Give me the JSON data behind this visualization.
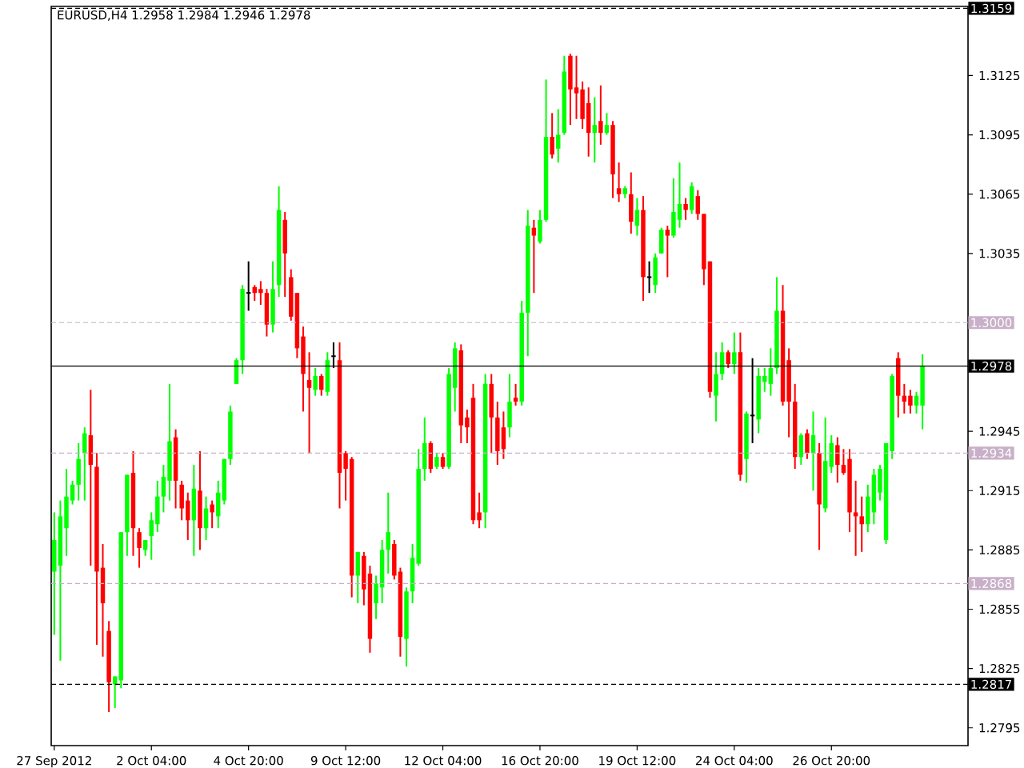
{
  "chart_data": {
    "type": "candlestick",
    "title": "EURUSD,H4 1.2958 1.2984 1.2946 1.2978",
    "categories": [
      "27 Sep 2012",
      null,
      null,
      null,
      null,
      null,
      null,
      null,
      null,
      null,
      null,
      null,
      null,
      null,
      null,
      null,
      "2 Oct 04:00",
      null,
      null,
      null,
      null,
      null,
      null,
      null,
      null,
      null,
      null,
      null,
      null,
      null,
      null,
      null,
      "4 Oct 20:00",
      null,
      null,
      null,
      null,
      null,
      null,
      null,
      null,
      null,
      null,
      null,
      null,
      null,
      null,
      null,
      "9 Oct 12:00",
      null,
      null,
      null,
      null,
      null,
      null,
      null,
      null,
      null,
      null,
      null,
      null,
      null,
      null,
      null,
      "12 Oct 04:00",
      null,
      null,
      null,
      null,
      null,
      null,
      null,
      null,
      null,
      null,
      null,
      null,
      null,
      null,
      null,
      "16 Oct 20:00",
      null,
      null,
      null,
      null,
      null,
      null,
      null,
      null,
      null,
      null,
      null,
      null,
      null,
      null,
      null,
      "19 Oct 12:00",
      null,
      null,
      null,
      null,
      null,
      null,
      null,
      null,
      null,
      null,
      null,
      null,
      null,
      null,
      null,
      "24 Oct 04:00",
      null,
      null,
      null,
      null,
      null,
      null,
      null,
      null,
      null,
      null,
      null,
      null,
      null,
      null,
      null,
      "26 Oct 20:00",
      null,
      null,
      null,
      null,
      null,
      null,
      null,
      null,
      null,
      null,
      null,
      null,
      null,
      null,
      null
    ],
    "ohlc": [
      [
        1.2874,
        1.2904,
        1.2842,
        1.289
      ],
      [
        1.2877,
        1.291,
        1.2829,
        1.2902
      ],
      [
        1.2896,
        1.2926,
        1.2882,
        1.2912
      ],
      [
        1.291,
        1.292,
        1.2908,
        1.2918
      ],
      [
        1.2918,
        1.2939,
        1.291,
        1.2931
      ],
      [
        1.2934,
        1.2947,
        1.291,
        1.2944
      ],
      [
        1.2943,
        1.2966,
        1.2877,
        1.2928
      ],
      [
        1.2927,
        1.2934,
        1.2837,
        1.2874
      ],
      [
        1.2876,
        1.2888,
        1.2831,
        1.2858
      ],
      [
        1.2844,
        1.2849,
        1.2803,
        1.2818
      ],
      [
        1.2817,
        1.2821,
        1.2805,
        1.2821
      ],
      [
        1.2819,
        1.2894,
        1.2815,
        1.2894
      ],
      [
        1.2894,
        1.2923,
        1.2882,
        1.2923
      ],
      [
        1.2924,
        1.2935,
        1.2882,
        1.2896
      ],
      [
        1.2894,
        1.2896,
        1.2876,
        1.2886
      ],
      [
        1.2885,
        1.289,
        1.2882,
        1.289
      ],
      [
        1.2892,
        1.2904,
        1.288,
        1.29
      ],
      [
        1.2898,
        1.292,
        1.2894,
        1.2912
      ],
      [
        1.2912,
        1.2928,
        1.2904,
        1.2922
      ],
      [
        1.292,
        1.2969,
        1.291,
        1.294
      ],
      [
        1.2942,
        1.2946,
        1.2906,
        1.292
      ],
      [
        1.2918,
        1.292,
        1.29,
        1.2906
      ],
      [
        1.291,
        1.2914,
        1.289,
        1.29
      ],
      [
        1.29,
        1.2928,
        1.2882,
        1.2916
      ],
      [
        1.2915,
        1.2935,
        1.2885,
        1.2896
      ],
      [
        1.2896,
        1.2912,
        1.289,
        1.2906
      ],
      [
        1.2908,
        1.291,
        1.2896,
        1.2904
      ],
      [
        1.2902,
        1.292,
        1.2896,
        1.2914
      ],
      [
        1.291,
        1.2931,
        1.2908,
        1.2931
      ],
      [
        1.2931,
        1.2958,
        1.2928,
        1.2955
      ],
      [
        1.2969,
        1.2982,
        1.2969,
        1.2981
      ],
      [
        1.2981,
        1.3019,
        1.2974,
        1.3017
      ],
      [
        1.3015,
        1.3031,
        1.3006,
        1.3015
      ],
      [
        1.3018,
        1.3019,
        1.3011,
        1.3015
      ],
      [
        1.3017,
        1.3021,
        1.3009,
        1.3015
      ],
      [
        1.3015,
        1.3017,
        1.2993,
        1.2999
      ],
      [
        1.2999,
        1.3031,
        1.2995,
        1.3017
      ],
      [
        1.3019,
        1.3069,
        1.3013,
        1.3057
      ],
      [
        1.3052,
        1.3056,
        1.3013,
        1.3035
      ],
      [
        1.3023,
        1.3027,
        1.3001,
        1.3003
      ],
      [
        1.3015,
        1.3015,
        1.2982,
        1.2987
      ],
      [
        1.2993,
        1.2998,
        1.2955,
        1.2974
      ],
      [
        1.2971,
        1.2985,
        1.2934,
        1.2967
      ],
      [
        1.2966,
        1.2977,
        1.2963,
        1.2973
      ],
      [
        1.2973,
        1.2974,
        1.2963,
        1.2966
      ],
      [
        1.2965,
        1.2985,
        1.2963,
        1.2981
      ],
      [
        1.2983,
        1.299,
        1.2977,
        1.2983
      ],
      [
        1.2981,
        1.299,
        1.2906,
        1.2924
      ],
      [
        1.2934,
        1.2935,
        1.291,
        1.2926
      ],
      [
        1.2931,
        1.2932,
        1.2861,
        1.2872
      ],
      [
        1.2872,
        1.2884,
        1.2858,
        1.2884
      ],
      [
        1.2882,
        1.2884,
        1.2857,
        1.2865
      ],
      [
        1.2873,
        1.2877,
        1.2833,
        1.284
      ],
      [
        1.2858,
        1.2872,
        1.285,
        1.2868
      ],
      [
        1.2866,
        1.289,
        1.2858,
        1.2885
      ],
      [
        1.2885,
        1.2914,
        1.2873,
        1.2894
      ],
      [
        1.2888,
        1.289,
        1.287,
        1.2872
      ],
      [
        1.2874,
        1.2876,
        1.2831,
        1.2841
      ],
      [
        1.284,
        1.2866,
        1.2826,
        1.2864
      ],
      [
        1.2864,
        1.2888,
        1.2858,
        1.2881
      ],
      [
        1.2878,
        1.2936,
        1.2877,
        1.2926
      ],
      [
        1.2926,
        1.2952,
        1.292,
        1.2939
      ],
      [
        1.2939,
        1.294,
        1.2924,
        1.2926
      ],
      [
        1.2927,
        1.2934,
        1.2926,
        1.2932
      ],
      [
        1.2932,
        1.2934,
        1.2926,
        1.2927
      ],
      [
        1.2927,
        1.2977,
        1.2926,
        1.2974
      ],
      [
        1.2967,
        1.299,
        1.2955,
        1.2987
      ],
      [
        1.2986,
        1.2989,
        1.2939,
        1.2948
      ],
      [
        1.2952,
        1.2956,
        1.2939,
        1.2947
      ],
      [
        1.2962,
        1.2969,
        1.2898,
        1.29
      ],
      [
        1.2904,
        1.2914,
        1.2896,
        1.29
      ],
      [
        1.2904,
        1.2974,
        1.2896,
        1.2969
      ],
      [
        1.2969,
        1.2974,
        1.2934,
        1.2952
      ],
      [
        1.2952,
        1.296,
        1.2928,
        1.2935
      ],
      [
        1.2947,
        1.2955,
        1.2931,
        1.2936
      ],
      [
        1.2947,
        1.2974,
        1.2942,
        1.296
      ],
      [
        1.2962,
        1.2969,
        1.2958,
        1.296
      ],
      [
        1.296,
        1.3011,
        1.2958,
        1.3005
      ],
      [
        1.3005,
        1.3057,
        1.2983,
        1.3049
      ],
      [
        1.3048,
        1.3052,
        1.3015,
        1.3044
      ],
      [
        1.3041,
        1.3057,
        1.304,
        1.3052
      ],
      [
        1.3052,
        1.3123,
        1.3051,
        1.3094
      ],
      [
        1.3094,
        1.3106,
        1.3083,
        1.3085
      ],
      [
        1.3088,
        1.3108,
        1.3081,
        1.3095
      ],
      [
        1.3096,
        1.3135,
        1.3095,
        1.3127
      ],
      [
        1.3135,
        1.3136,
        1.31,
        1.3118
      ],
      [
        1.3119,
        1.3135,
        1.3103,
        1.3116
      ],
      [
        1.3118,
        1.3122,
        1.3098,
        1.3103
      ],
      [
        1.3111,
        1.3119,
        1.3084,
        1.3096
      ],
      [
        1.3096,
        1.3114,
        1.3081,
        1.31
      ],
      [
        1.3102,
        1.312,
        1.309,
        1.3096
      ],
      [
        1.3096,
        1.3106,
        1.3095,
        1.31
      ],
      [
        1.31,
        1.3102,
        1.3063,
        1.3075
      ],
      [
        1.3068,
        1.3081,
        1.3061,
        1.3065
      ],
      [
        1.3065,
        1.3069,
        1.3063,
        1.3068
      ],
      [
        1.3065,
        1.3076,
        1.3045,
        1.3051
      ],
      [
        1.3049,
        1.3063,
        1.3044,
        1.3057
      ],
      [
        1.3057,
        1.3064,
        1.3011,
        1.3023
      ],
      [
        1.3023,
        1.3031,
        1.3015,
        1.3023
      ],
      [
        1.3019,
        1.3035,
        1.3015,
        1.3033
      ],
      [
        1.3035,
        1.3048,
        1.3035,
        1.3047
      ],
      [
        1.3047,
        1.3049,
        1.3023,
        1.3044
      ],
      [
        1.3044,
        1.3073,
        1.3043,
        1.3056
      ],
      [
        1.3052,
        1.3081,
        1.3048,
        1.306
      ],
      [
        1.306,
        1.3063,
        1.3052,
        1.3057
      ],
      [
        1.3057,
        1.3071,
        1.3055,
        1.3069
      ],
      [
        1.3064,
        1.3067,
        1.3052,
        1.3055
      ],
      [
        1.3055,
        1.3055,
        1.3019,
        1.3027
      ],
      [
        1.3031,
        1.3031,
        1.2962,
        1.2965
      ],
      [
        1.2963,
        1.2985,
        1.295,
        1.2974
      ],
      [
        1.2974,
        1.299,
        1.2971,
        1.2985
      ],
      [
        1.2985,
        1.2986,
        1.2977,
        1.2979
      ],
      [
        1.2979,
        1.2995,
        1.2974,
        1.2985
      ],
      [
        1.2985,
        1.2995,
        1.292,
        1.2923
      ],
      [
        1.2931,
        1.2955,
        1.2919,
        1.2954
      ],
      [
        1.2953,
        1.2982,
        1.2939,
        1.2953
      ],
      [
        1.2951,
        1.2977,
        1.2944,
        1.2973
      ],
      [
        1.297,
        1.2977,
        1.2965,
        1.2973
      ],
      [
        1.2969,
        1.2987,
        1.2963,
        1.2977
      ],
      [
        1.2977,
        1.3023,
        1.2974,
        1.3006
      ],
      [
        1.3006,
        1.3019,
        1.2958,
        1.296
      ],
      [
        1.2981,
        1.2987,
        1.2942,
        1.296
      ],
      [
        1.296,
        1.2969,
        1.2926,
        1.2932
      ],
      [
        1.2932,
        1.2944,
        1.2928,
        1.2943
      ],
      [
        1.2944,
        1.2946,
        1.2931,
        1.2934
      ],
      [
        1.2934,
        1.2955,
        1.2915,
        1.2943
      ],
      [
        1.2934,
        1.2939,
        1.2885,
        1.2908
      ],
      [
        1.2906,
        1.2952,
        1.2904,
        1.293
      ],
      [
        1.2927,
        1.2943,
        1.2924,
        1.2939
      ],
      [
        1.2938,
        1.2942,
        1.2919,
        1.2928
      ],
      [
        1.2928,
        1.2936,
        1.2923,
        1.2924
      ],
      [
        1.2931,
        1.2936,
        1.2894,
        1.2904
      ],
      [
        1.2904,
        1.292,
        1.2882,
        1.2902
      ],
      [
        1.2902,
        1.2912,
        1.2884,
        1.2898
      ],
      [
        1.2898,
        1.2918,
        1.2894,
        1.2912
      ],
      [
        1.2904,
        1.2926,
        1.2898,
        1.2923
      ],
      [
        1.2914,
        1.2928,
        1.291,
        1.2926
      ],
      [
        1.289,
        1.2939,
        1.2888,
        1.2939
      ],
      [
        1.2935,
        1.2974,
        1.2931,
        1.2973
      ],
      [
        1.2982,
        1.2985,
        1.2952,
        1.2963
      ],
      [
        1.2963,
        1.2969,
        1.2954,
        1.296
      ],
      [
        1.2963,
        1.2966,
        1.2954,
        1.2958
      ],
      [
        1.2958,
        1.2965,
        1.2954,
        1.2963
      ],
      [
        1.2958,
        1.2984,
        1.2946,
        1.2978
      ]
    ],
    "colors": [
      "#00ff00",
      "#00ff00",
      "#00ff00",
      "#00ff00",
      "#00ff00",
      "#00ff00",
      "#ff0000",
      "#ff0000",
      "#ff0000",
      "#ff0000",
      "#00ff00",
      "#00ff00",
      "#00ff00",
      "#ff0000",
      "#ff0000",
      "#00ff00",
      "#00ff00",
      "#00ff00",
      "#00ff00",
      "#00ff00",
      "#ff0000",
      "#ff0000",
      "#ff0000",
      "#00ff00",
      "#ff0000",
      "#00ff00",
      "#ff0000",
      "#00ff00",
      "#00ff00",
      "#00ff00",
      "#00ff00",
      "#00ff00",
      "#000000",
      "#ff0000",
      "#ff0000",
      "#ff0000",
      "#00ff00",
      "#00ff00",
      "#ff0000",
      "#ff0000",
      "#ff0000",
      "#ff0000",
      "#ff0000",
      "#00ff00",
      "#ff0000",
      "#00ff00",
      "#000000",
      "#ff0000",
      "#ff0000",
      "#ff0000",
      "#00ff00",
      "#ff0000",
      "#ff0000",
      "#00ff00",
      "#00ff00",
      "#00ff00",
      "#ff0000",
      "#ff0000",
      "#00ff00",
      "#00ff00",
      "#00ff00",
      "#00ff00",
      "#ff0000",
      "#00ff00",
      "#ff0000",
      "#00ff00",
      "#00ff00",
      "#ff0000",
      "#ff0000",
      "#ff0000",
      "#ff0000",
      "#00ff00",
      "#ff0000",
      "#ff0000",
      "#ff0000",
      "#00ff00",
      "#ff0000",
      "#00ff00",
      "#00ff00",
      "#ff0000",
      "#00ff00",
      "#00ff00",
      "#ff0000",
      "#00ff00",
      "#00ff00",
      "#ff0000",
      "#ff0000",
      "#ff0000",
      "#ff0000",
      "#00ff00",
      "#ff0000",
      "#00ff00",
      "#ff0000",
      "#ff0000",
      "#00ff00",
      "#ff0000",
      "#00ff00",
      "#ff0000",
      "#000000",
      "#00ff00",
      "#00ff00",
      "#ff0000",
      "#00ff00",
      "#00ff00",
      "#ff0000",
      "#00ff00",
      "#ff0000",
      "#ff0000",
      "#ff0000",
      "#00ff00",
      "#00ff00",
      "#ff0000",
      "#00ff00",
      "#ff0000",
      "#00ff00",
      "#000000",
      "#00ff00",
      "#00ff00",
      "#00ff00",
      "#00ff00",
      "#ff0000",
      "#ff0000",
      "#ff0000",
      "#00ff00",
      "#ff0000",
      "#00ff00",
      "#ff0000",
      "#00ff00",
      "#00ff00",
      "#ff0000",
      "#ff0000",
      "#ff0000",
      "#ff0000",
      "#ff0000",
      "#00ff00",
      "#00ff00",
      "#00ff00",
      "#00ff00",
      "#00ff00",
      "#ff0000",
      "#ff0000",
      "#ff0000",
      "#00ff00",
      "#00ff00"
    ],
    "ylim": [
      1.2786,
      1.316
    ],
    "yticks": [
      1.2795,
      1.2825,
      1.2855,
      1.2885,
      1.2915,
      1.2945,
      1.3035,
      1.3065,
      1.3095,
      1.3125
    ],
    "ref_lines": [
      {
        "axis": "y",
        "value": 1.3159,
        "label": "1.3159",
        "color": "#000000",
        "line_style": "dashed"
      },
      {
        "axis": "y",
        "value": 1.3,
        "label": "1.3000",
        "color": "#c8b0c8",
        "line_style": "dashed"
      },
      {
        "axis": "y",
        "value": 1.2934,
        "label": "1.2934",
        "color": "#c8b0c8",
        "line_style": "dashed"
      },
      {
        "axis": "y",
        "value": 1.2868,
        "label": "1.2868",
        "color": "#c8b0c8",
        "line_style": "dashed"
      },
      {
        "axis": "y",
        "value": 1.2817,
        "label": "1.2817",
        "color": "#000000",
        "line_style": "dashed"
      },
      {
        "axis": "y",
        "value": 1.2978,
        "label": "1.2978",
        "color": "#000000",
        "line_style": "solid"
      }
    ]
  }
}
